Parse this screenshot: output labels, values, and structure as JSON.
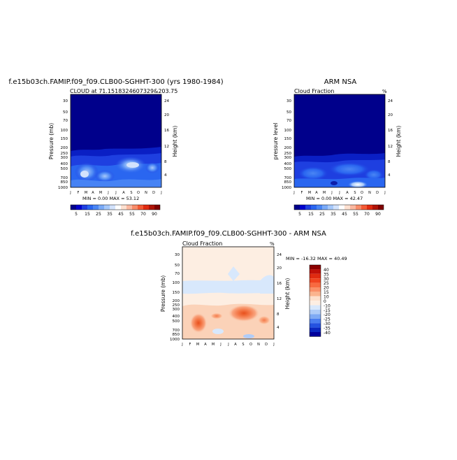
{
  "panels": [
    {
      "title": "f.e15b03ch.FAMIP.f09_f09.CLB00-SGHHT-300 (yrs 1980-1984)",
      "subtitle": "CLOUD at 71.1518324607329&203.75",
      "y_left_label": "Pressure (mb)",
      "y_right_label": "Height (km)",
      "minmax": "MIN =   0.00 MAX =  53.12"
    },
    {
      "title": "ARM NSA",
      "subtitle": "Cloud Fraction",
      "corner": "%",
      "y_left_label": "pressure level",
      "y_right_label": "Height (km)",
      "minmax": "MIN =   0.00 MAX =  42.47"
    },
    {
      "title": "f.e15b03ch.FAMIP.f09_f09.CLB00-SGHHT-300 - ARM NSA",
      "subtitle": "Cloud Fraction",
      "corner": "%",
      "y_left_label": "Pressure (mb)",
      "y_right_label": "Height (km)",
      "minmax": "MIN = -16.32 MAX =  40.49"
    }
  ],
  "chart_data": [
    {
      "type": "heatmap",
      "title": "f.e15b03ch.FAMIP.f09_f09.CLB00-SGHHT-300 (yrs 1980-1984)",
      "subtitle": "CLOUD at 71.1518324607329&203.75",
      "ylabel": "Pressure (mb)",
      "y2label": "Height (km)",
      "x_ticks": [
        "J",
        "F",
        "M",
        "A",
        "M",
        "J",
        "J",
        "A",
        "S",
        "O",
        "N",
        "D",
        "J"
      ],
      "y_ticks": [
        30,
        50,
        70,
        100,
        150,
        200,
        250,
        300,
        400,
        500,
        700,
        850,
        1000
      ],
      "y2_ticks": [
        24,
        20,
        16,
        12,
        8,
        4
      ],
      "min": 0.0,
      "max": 53.12,
      "colorbar_labels": [
        "5",
        "15",
        "25",
        "35",
        "45",
        "55",
        "70",
        "90"
      ],
      "color_levels": [
        "#00008b",
        "#0000cd",
        "#1e3fe0",
        "#2a66f0",
        "#4a86f4",
        "#7aaaf7",
        "#a6c8fa",
        "#d2e2fc",
        "#ffffff",
        "#fde0d0",
        "#fbb8a0",
        "#f88c6a",
        "#f45a35",
        "#e02a10",
        "#b01408",
        "#800000"
      ]
    },
    {
      "type": "heatmap",
      "title": "ARM NSA",
      "subtitle": "Cloud Fraction",
      "ylabel": "pressure level",
      "y2label": "Height (km)",
      "x_ticks": [
        "J",
        "F",
        "M",
        "A",
        "M",
        "J",
        "J",
        "A",
        "S",
        "O",
        "N",
        "D",
        "J"
      ],
      "y_ticks": [
        30,
        50,
        70,
        100,
        150,
        200,
        250,
        300,
        400,
        500,
        700,
        850,
        1000
      ],
      "y2_ticks": [
        24,
        20,
        16,
        12,
        8,
        4
      ],
      "min": 0.0,
      "max": 42.47,
      "colorbar_labels": [
        "5",
        "15",
        "25",
        "35",
        "45",
        "55",
        "70",
        "90"
      ]
    },
    {
      "type": "heatmap",
      "title": "f.e15b03ch.FAMIP.f09_f09.CLB00-SGHHT-300 - ARM NSA",
      "subtitle": "Cloud Fraction",
      "ylabel": "Pressure (mb)",
      "y2label": "Height (km)",
      "x_ticks": [
        "J",
        "F",
        "M",
        "A",
        "M",
        "J",
        "J",
        "A",
        "S",
        "O",
        "N",
        "D",
        "J"
      ],
      "y_ticks": [
        30,
        50,
        70,
        100,
        150,
        200,
        250,
        300,
        400,
        500,
        700,
        850,
        1000
      ],
      "y2_ticks": [
        24,
        20,
        16,
        12,
        8,
        4
      ],
      "min": -16.32,
      "max": 40.49,
      "colorbar_labels": [
        "40",
        "35",
        "30",
        "25",
        "20",
        "15",
        "10",
        "0",
        "-10",
        "-15",
        "-20",
        "-25",
        "-30",
        "-35",
        "-40"
      ],
      "color_levels": [
        "#8b0000",
        "#c01008",
        "#e02a10",
        "#f04420",
        "#f86a40",
        "#fa9068",
        "#fbb48e",
        "#fde0cc",
        "#fdeee2",
        "#d8e8fc",
        "#b0ccf8",
        "#7faaf4",
        "#4a7ef0",
        "#2452e0",
        "#0a28c0",
        "#00009a"
      ]
    }
  ]
}
